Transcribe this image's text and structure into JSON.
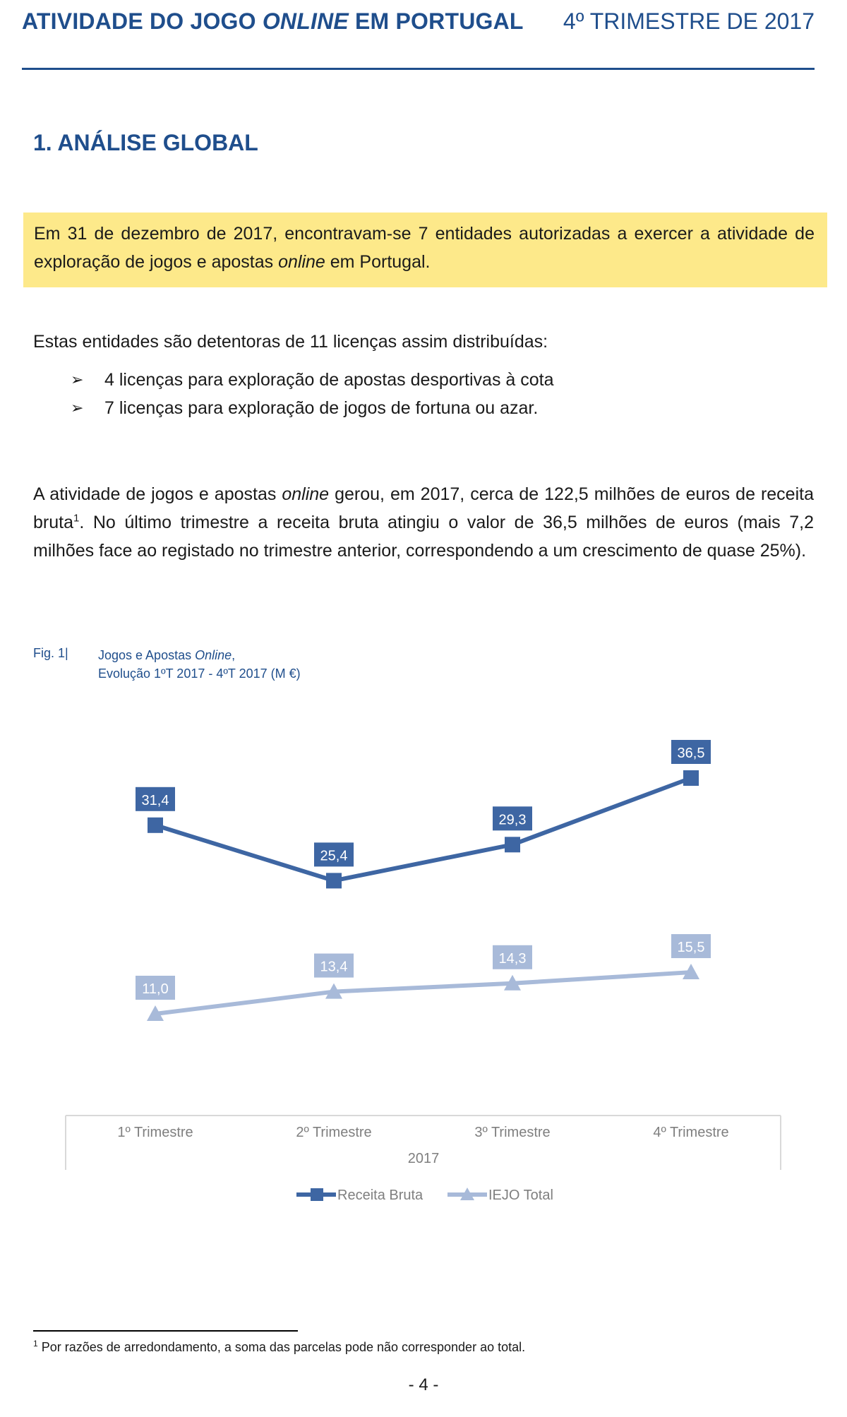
{
  "header": {
    "title_part1": "ATIVIDADE DO JOGO ",
    "title_italic": "ONLINE",
    "title_part2": " EM PORTUGAL",
    "period": "4º TRIMESTRE DE 2017"
  },
  "section_title": "1. ANÁLISE GLOBAL",
  "highlight": {
    "text_part1": "Em 31 de dezembro de 2017, encontravam-se 7 entidades autorizadas a exercer a atividade de exploração de jogos e apostas ",
    "text_italic": "online",
    "text_part2": " em Portugal."
  },
  "licenses": {
    "intro": "Estas entidades são detentoras de 11 licenças assim distribuídas:",
    "bullet_glyph": "➢",
    "items": [
      "4 licenças para exploração de apostas desportivas à cota",
      "7 licenças para exploração de jogos de fortuna ou azar."
    ]
  },
  "revenue_paragraph": {
    "part1": "A atividade de jogos e apostas ",
    "italic": "online",
    "part2": " gerou, em 2017, cerca de 122,5 milhões de euros de receita bruta",
    "footnote_ref": "1",
    "part3": ". No último trimestre a receita bruta atingiu o valor de 36,5 milhões de euros (mais 7,2 milhões face ao registado no trimestre anterior, correspondendo a um crescimento de quase 25%)."
  },
  "figure": {
    "label": "Fig. 1|",
    "title_part1": "Jogos e Apostas ",
    "title_italic": "Online",
    "title_part2": ",",
    "title_line2": "Evolução 1ºT 2017 - 4ºT 2017 (M €)"
  },
  "chart_data": {
    "type": "line",
    "categories": [
      "1º Trimestre",
      "2º Trimestre",
      "3º Trimestre",
      "4º Trimestre"
    ],
    "category_group": "2017",
    "series": [
      {
        "name": "Receita Bruta",
        "values": [
          31.4,
          25.4,
          29.3,
          36.5
        ],
        "labels": [
          "31,4",
          "25,4",
          "29,3",
          "36,5"
        ],
        "color": "#3e66a3",
        "marker": "square"
      },
      {
        "name": "IEJO Total",
        "values": [
          11.0,
          13.4,
          14.3,
          15.5
        ],
        "labels": [
          "11,0",
          "13,4",
          "14,3",
          "15,5"
        ],
        "color": "#a8bad9",
        "marker": "triangle"
      }
    ],
    "ylim": [
      0,
      40
    ],
    "grid": false,
    "legend": "bottom"
  },
  "footnote": {
    "ref": "1",
    "text": " Por razões de arredondamento, a soma das parcelas pode não corresponder ao total."
  },
  "page_number": "- 4 -"
}
